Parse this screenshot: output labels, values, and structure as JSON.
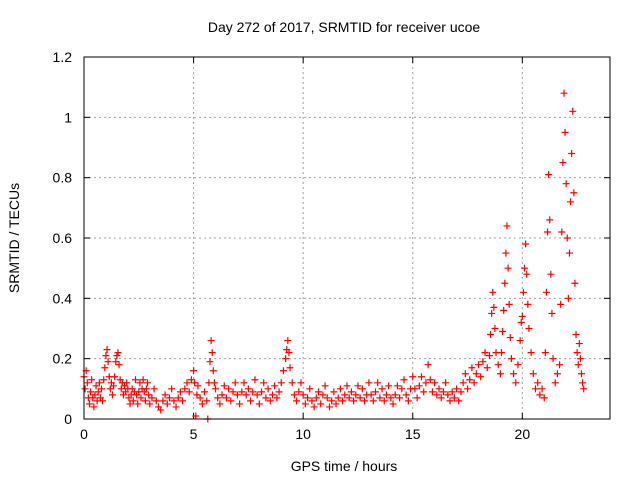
{
  "chart_data": {
    "type": "scatter",
    "title": "Day 272 of 2017, SRMTID for receiver ucoe",
    "xlabel": "GPS time / hours",
    "ylabel": "SRMTID / TECUs",
    "xlim": [
      0,
      24
    ],
    "ylim": [
      0,
      1.2
    ],
    "x_ticks": [
      0,
      5,
      10,
      15,
      20
    ],
    "x_tick_labels": [
      "0",
      "5",
      "10",
      "15",
      "20"
    ],
    "y_ticks": [
      0,
      0.2,
      0.4,
      0.6,
      0.8,
      1.0,
      1.2
    ],
    "y_tick_labels": [
      "0",
      "0.2",
      "0.4",
      "0.6",
      "0.8",
      "1",
      "1.2"
    ],
    "grid": true,
    "marker": "+",
    "color": "#ff0000",
    "series": [
      {
        "name": "SRMTID",
        "points": [
          [
            0.0,
            0.14
          ],
          [
            0.05,
            0.1
          ],
          [
            0.1,
            0.16
          ],
          [
            0.15,
            0.12
          ],
          [
            0.2,
            0.07
          ],
          [
            0.25,
            0.05
          ],
          [
            0.3,
            0.09
          ],
          [
            0.35,
            0.13
          ],
          [
            0.4,
            0.07
          ],
          [
            0.45,
            0.04
          ],
          [
            0.5,
            0.08
          ],
          [
            0.55,
            0.11
          ],
          [
            0.6,
            0.06
          ],
          [
            0.65,
            0.09
          ],
          [
            0.7,
            0.12
          ],
          [
            0.75,
            0.07
          ],
          [
            0.8,
            0.1
          ],
          [
            0.85,
            0.06
          ],
          [
            0.9,
            0.13
          ],
          [
            0.95,
            0.17
          ],
          [
            1.0,
            0.21
          ],
          [
            1.05,
            0.23
          ],
          [
            1.1,
            0.19
          ],
          [
            1.15,
            0.14
          ],
          [
            1.2,
            0.1
          ],
          [
            1.25,
            0.12
          ],
          [
            1.3,
            0.08
          ],
          [
            1.35,
            0.11
          ],
          [
            1.4,
            0.14
          ],
          [
            1.45,
            0.19
          ],
          [
            1.5,
            0.21
          ],
          [
            1.55,
            0.22
          ],
          [
            1.6,
            0.18
          ],
          [
            1.65,
            0.13
          ],
          [
            1.7,
            0.1
          ],
          [
            1.75,
            0.12
          ],
          [
            1.8,
            0.08
          ],
          [
            1.85,
            0.11
          ],
          [
            1.9,
            0.09
          ],
          [
            1.95,
            0.12
          ],
          [
            2.0,
            0.1
          ],
          [
            2.05,
            0.07
          ],
          [
            2.1,
            0.05
          ],
          [
            2.15,
            0.08
          ],
          [
            2.2,
            0.1
          ],
          [
            2.25,
            0.06
          ],
          [
            2.3,
            0.09
          ],
          [
            2.35,
            0.13
          ],
          [
            2.4,
            0.08
          ],
          [
            2.45,
            0.05
          ],
          [
            2.5,
            0.09
          ],
          [
            2.55,
            0.12
          ],
          [
            2.6,
            0.07
          ],
          [
            2.65,
            0.1
          ],
          [
            2.7,
            0.13
          ],
          [
            2.75,
            0.09
          ],
          [
            2.8,
            0.06
          ],
          [
            2.85,
            0.1
          ],
          [
            2.9,
            0.12
          ],
          [
            2.95,
            0.08
          ],
          [
            3.0,
            0.05
          ],
          [
            3.1,
            0.07
          ],
          [
            3.2,
            0.1
          ],
          [
            3.3,
            0.06
          ],
          [
            3.4,
            0.04
          ],
          [
            3.5,
            0.03
          ],
          [
            3.6,
            0.06
          ],
          [
            3.7,
            0.08
          ],
          [
            3.8,
            0.05
          ],
          [
            3.9,
            0.07
          ],
          [
            4.0,
            0.1
          ],
          [
            4.1,
            0.06
          ],
          [
            4.2,
            0.04
          ],
          [
            4.3,
            0.07
          ],
          [
            4.4,
            0.09
          ],
          [
            4.5,
            0.06
          ],
          [
            4.6,
            0.1
          ],
          [
            4.7,
            0.12
          ],
          [
            4.8,
            0.09
          ],
          [
            4.9,
            0.13
          ],
          [
            5.0,
            0.16
          ],
          [
            5.05,
            0.12
          ],
          [
            5.1,
            0.01
          ],
          [
            5.15,
            0.08
          ],
          [
            5.2,
            0.11
          ],
          [
            5.3,
            0.07
          ],
          [
            5.4,
            0.05
          ],
          [
            5.5,
            0.09
          ],
          [
            5.6,
            0.06
          ],
          [
            5.65,
            0.0
          ],
          [
            5.7,
            0.12
          ],
          [
            5.75,
            0.19
          ],
          [
            5.8,
            0.26
          ],
          [
            5.85,
            0.22
          ],
          [
            5.9,
            0.16
          ],
          [
            5.95,
            0.12
          ],
          [
            6.0,
            0.1
          ],
          [
            6.1,
            0.07
          ],
          [
            6.2,
            0.05
          ],
          [
            6.3,
            0.08
          ],
          [
            6.4,
            0.11
          ],
          [
            6.5,
            0.07
          ],
          [
            6.6,
            0.1
          ],
          [
            6.7,
            0.06
          ],
          [
            6.8,
            0.09
          ],
          [
            6.9,
            0.12
          ],
          [
            7.0,
            0.08
          ],
          [
            7.1,
            0.05
          ],
          [
            7.2,
            0.09
          ],
          [
            7.3,
            0.12
          ],
          [
            7.4,
            0.08
          ],
          [
            7.5,
            0.1
          ],
          [
            7.6,
            0.06
          ],
          [
            7.7,
            0.09
          ],
          [
            7.8,
            0.13
          ],
          [
            7.9,
            0.08
          ],
          [
            8.0,
            0.05
          ],
          [
            8.1,
            0.09
          ],
          [
            8.2,
            0.12
          ],
          [
            8.3,
            0.07
          ],
          [
            8.4,
            0.1
          ],
          [
            8.5,
            0.06
          ],
          [
            8.6,
            0.08
          ],
          [
            8.7,
            0.11
          ],
          [
            8.8,
            0.07
          ],
          [
            8.9,
            0.09
          ],
          [
            9.0,
            0.12
          ],
          [
            9.1,
            0.16
          ],
          [
            9.2,
            0.2
          ],
          [
            9.25,
            0.23
          ],
          [
            9.3,
            0.26
          ],
          [
            9.35,
            0.22
          ],
          [
            9.4,
            0.17
          ],
          [
            9.5,
            0.12
          ],
          [
            9.6,
            0.08
          ],
          [
            9.7,
            0.06
          ],
          [
            9.8,
            0.09
          ],
          [
            9.9,
            0.12
          ],
          [
            10.0,
            0.08
          ],
          [
            10.1,
            0.05
          ],
          [
            10.2,
            0.07
          ],
          [
            10.3,
            0.1
          ],
          [
            10.4,
            0.06
          ],
          [
            10.5,
            0.04
          ],
          [
            10.6,
            0.07
          ],
          [
            10.7,
            0.09
          ],
          [
            10.8,
            0.05
          ],
          [
            10.9,
            0.08
          ],
          [
            11.0,
            0.11
          ],
          [
            11.1,
            0.07
          ],
          [
            11.2,
            0.04
          ],
          [
            11.3,
            0.06
          ],
          [
            11.4,
            0.09
          ],
          [
            11.5,
            0.05
          ],
          [
            11.6,
            0.07
          ],
          [
            11.7,
            0.1
          ],
          [
            11.8,
            0.06
          ],
          [
            11.9,
            0.08
          ],
          [
            12.0,
            0.11
          ],
          [
            12.1,
            0.07
          ],
          [
            12.2,
            0.09
          ],
          [
            12.3,
            0.06
          ],
          [
            12.4,
            0.08
          ],
          [
            12.5,
            0.11
          ],
          [
            12.6,
            0.07
          ],
          [
            12.7,
            0.1
          ],
          [
            12.8,
            0.06
          ],
          [
            12.9,
            0.08
          ],
          [
            13.0,
            0.12
          ],
          [
            13.1,
            0.08
          ],
          [
            13.2,
            0.06
          ],
          [
            13.3,
            0.09
          ],
          [
            13.4,
            0.12
          ],
          [
            13.5,
            0.07
          ],
          [
            13.6,
            0.1
          ],
          [
            13.7,
            0.06
          ],
          [
            13.8,
            0.08
          ],
          [
            13.9,
            0.11
          ],
          [
            14.0,
            0.07
          ],
          [
            14.1,
            0.05
          ],
          [
            14.2,
            0.08
          ],
          [
            14.3,
            0.11
          ],
          [
            14.4,
            0.07
          ],
          [
            14.5,
            0.1
          ],
          [
            14.6,
            0.13
          ],
          [
            14.7,
            0.08
          ],
          [
            14.8,
            0.06
          ],
          [
            14.9,
            0.1
          ],
          [
            15.0,
            0.14
          ],
          [
            15.1,
            0.1
          ],
          [
            15.2,
            0.07
          ],
          [
            15.3,
            0.11
          ],
          [
            15.4,
            0.14
          ],
          [
            15.5,
            0.09
          ],
          [
            15.6,
            0.12
          ],
          [
            15.7,
            0.18
          ],
          [
            15.8,
            0.13
          ],
          [
            15.9,
            0.09
          ],
          [
            16.0,
            0.12
          ],
          [
            16.1,
            0.08
          ],
          [
            16.2,
            0.1
          ],
          [
            16.3,
            0.07
          ],
          [
            16.4,
            0.09
          ],
          [
            16.5,
            0.12
          ],
          [
            16.6,
            0.08
          ],
          [
            16.7,
            0.06
          ],
          [
            16.8,
            0.09
          ],
          [
            16.9,
            0.07
          ],
          [
            17.0,
            0.1
          ],
          [
            17.1,
            0.06
          ],
          [
            17.2,
            0.09
          ],
          [
            17.3,
            0.12
          ],
          [
            17.4,
            0.15
          ],
          [
            17.5,
            0.1
          ],
          [
            17.6,
            0.13
          ],
          [
            17.7,
            0.17
          ],
          [
            17.8,
            0.12
          ],
          [
            17.9,
            0.15
          ],
          [
            18.0,
            0.18
          ],
          [
            18.1,
            0.14
          ],
          [
            18.2,
            0.19
          ],
          [
            18.3,
            0.22
          ],
          [
            18.4,
            0.17
          ],
          [
            18.5,
            0.21
          ],
          [
            18.55,
            0.28
          ],
          [
            18.6,
            0.35
          ],
          [
            18.65,
            0.42
          ],
          [
            18.7,
            0.37
          ],
          [
            18.75,
            0.3
          ],
          [
            18.8,
            0.22
          ],
          [
            18.9,
            0.18
          ],
          [
            19.0,
            0.15
          ],
          [
            19.05,
            0.22
          ],
          [
            19.1,
            0.29
          ],
          [
            19.15,
            0.36
          ],
          [
            19.2,
            0.45
          ],
          [
            19.25,
            0.55
          ],
          [
            19.3,
            0.64
          ],
          [
            19.35,
            0.5
          ],
          [
            19.4,
            0.38
          ],
          [
            19.45,
            0.27
          ],
          [
            19.5,
            0.2
          ],
          [
            19.6,
            0.15
          ],
          [
            19.7,
            0.12
          ],
          [
            19.8,
            0.18
          ],
          [
            19.9,
            0.26
          ],
          [
            19.95,
            0.32
          ],
          [
            20.0,
            0.34
          ],
          [
            20.05,
            0.42
          ],
          [
            20.1,
            0.5
          ],
          [
            20.15,
            0.58
          ],
          [
            20.2,
            0.48
          ],
          [
            20.25,
            0.38
          ],
          [
            20.3,
            0.3
          ],
          [
            20.4,
            0.22
          ],
          [
            20.5,
            0.15
          ],
          [
            20.6,
            0.1
          ],
          [
            20.7,
            0.12
          ],
          [
            20.8,
            0.08
          ],
          [
            20.9,
            0.1
          ],
          [
            21.0,
            0.07
          ],
          [
            21.05,
            0.22
          ],
          [
            21.1,
            0.42
          ],
          [
            21.15,
            0.62
          ],
          [
            21.2,
            0.81
          ],
          [
            21.25,
            0.66
          ],
          [
            21.3,
            0.48
          ],
          [
            21.35,
            0.35
          ],
          [
            21.4,
            0.2
          ],
          [
            21.5,
            0.12
          ],
          [
            21.6,
            0.15
          ],
          [
            21.7,
            0.18
          ],
          [
            21.75,
            0.38
          ],
          [
            21.8,
            0.62
          ],
          [
            21.85,
            0.85
          ],
          [
            21.9,
            1.08
          ],
          [
            21.95,
            0.95
          ],
          [
            22.0,
            0.78
          ],
          [
            22.05,
            0.6
          ],
          [
            22.1,
            0.4
          ],
          [
            22.15,
            0.55
          ],
          [
            22.2,
            0.72
          ],
          [
            22.25,
            0.88
          ],
          [
            22.3,
            1.02
          ],
          [
            22.35,
            0.75
          ],
          [
            22.4,
            0.45
          ],
          [
            22.45,
            0.28
          ],
          [
            22.5,
            0.22
          ],
          [
            22.55,
            0.18
          ],
          [
            22.6,
            0.25
          ],
          [
            22.65,
            0.2
          ],
          [
            22.7,
            0.15
          ],
          [
            22.75,
            0.12
          ],
          [
            22.8,
            0.1
          ]
        ]
      }
    ]
  }
}
